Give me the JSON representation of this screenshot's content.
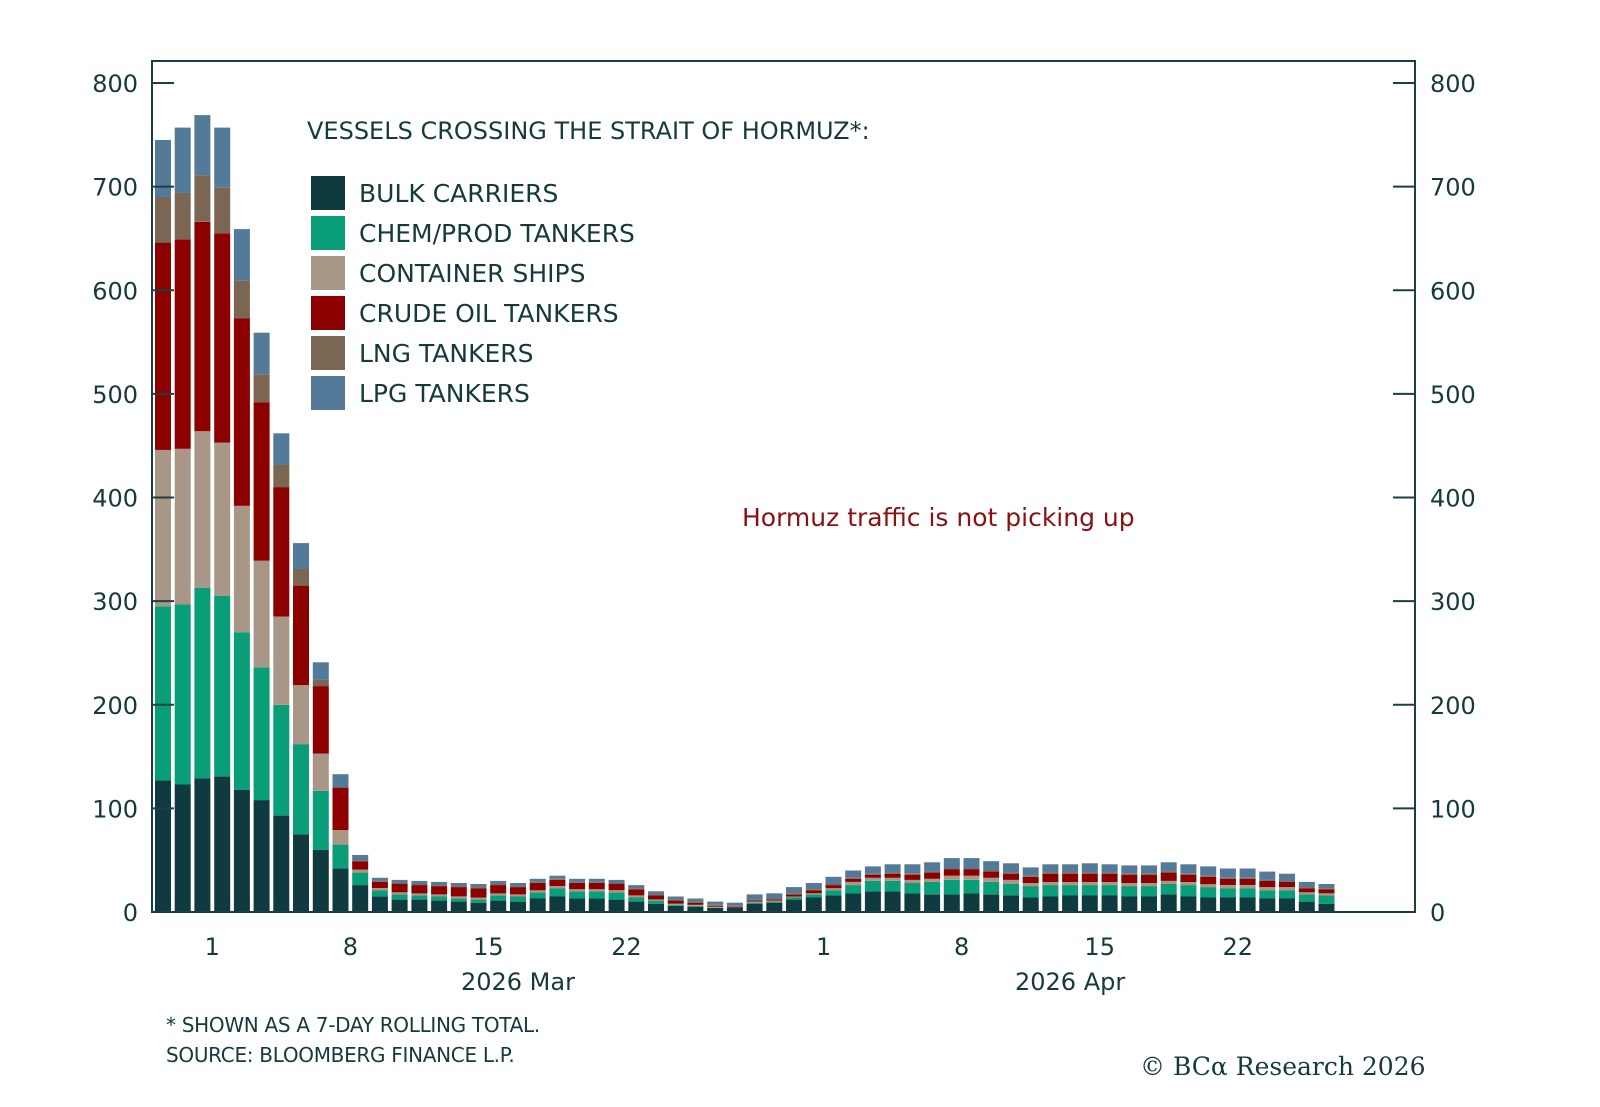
{
  "chart_data": {
    "type": "bar",
    "stacked": true,
    "title": "VESSELS CROSSING THE STRAIT OF HORMUZ*:",
    "annotation": "Hormuz traffic is not picking up",
    "xlabel": "",
    "ylabel": "",
    "ylim": [
      0,
      800
    ],
    "yticks": [
      0,
      100,
      200,
      300,
      400,
      500,
      600,
      700,
      800
    ],
    "y_axes": [
      "left",
      "right"
    ],
    "grid": false,
    "legend_position": "top-left",
    "x_start_date": "2026-02-26",
    "x_end_date": "2026-04-28",
    "x_ticks": [
      {
        "label": "1",
        "date": "2026-03-01"
      },
      {
        "label": "8",
        "date": "2026-03-08"
      },
      {
        "label": "15",
        "date": "2026-03-15"
      },
      {
        "label": "22",
        "date": "2026-03-22"
      },
      {
        "label": "1",
        "date": "2026-04-01"
      },
      {
        "label": "8",
        "date": "2026-04-08"
      },
      {
        "label": "15",
        "date": "2026-04-15"
      },
      {
        "label": "22",
        "date": "2026-04-22"
      }
    ],
    "x_month_labels": [
      {
        "label": "2026 Mar",
        "date": "2026-03-16"
      },
      {
        "label": "2026 Apr",
        "date": "2026-04-13"
      }
    ],
    "categories": [
      "Feb 26",
      "Feb 27",
      "Feb 28",
      "Mar 1",
      "Mar 2",
      "Mar 3",
      "Mar 4",
      "Mar 5",
      "Mar 6",
      "Mar 7",
      "Mar 8",
      "Mar 9",
      "Mar 10",
      "Mar 11",
      "Mar 12",
      "Mar 13",
      "Mar 14",
      "Mar 15",
      "Mar 16",
      "Mar 17",
      "Mar 18",
      "Mar 19",
      "Mar 20",
      "Mar 21",
      "Mar 22",
      "Mar 23",
      "Mar 24",
      "Mar 25",
      "Mar 26",
      "Mar 27",
      "Mar 28",
      "Mar 29",
      "Mar 30",
      "Mar 31",
      "Apr 1",
      "Apr 2",
      "Apr 3",
      "Apr 4",
      "Apr 5",
      "Apr 6",
      "Apr 7",
      "Apr 8",
      "Apr 9",
      "Apr 10",
      "Apr 11",
      "Apr 12",
      "Apr 13",
      "Apr 14",
      "Apr 15",
      "Apr 16",
      "Apr 17",
      "Apr 18",
      "Apr 19",
      "Apr 20",
      "Apr 21",
      "Apr 22",
      "Apr 23",
      "Apr 24",
      "Apr 25",
      "Apr 26"
    ],
    "series": [
      {
        "name": "BULK CARRIERS",
        "color": "#0f3a40",
        "values": [
          127,
          123,
          129,
          131,
          118,
          108,
          93,
          75,
          60,
          42,
          26,
          15,
          12,
          12,
          11,
          10,
          9,
          11,
          10,
          13,
          15,
          13,
          13,
          12,
          10,
          8,
          6,
          5,
          4,
          4,
          8,
          9,
          12,
          14,
          16,
          18,
          20,
          20,
          18,
          17,
          17,
          18,
          17,
          16,
          14,
          15,
          16,
          16,
          16,
          15,
          15,
          17,
          15,
          14,
          14,
          14,
          13,
          13,
          10,
          8
        ]
      },
      {
        "name": "CHEM/PROD TANKERS",
        "color": "#0a9e78",
        "values": [
          168,
          174,
          184,
          174,
          152,
          128,
          107,
          87,
          57,
          23,
          12,
          6,
          5,
          4,
          4,
          3,
          3,
          5,
          5,
          6,
          8,
          7,
          7,
          7,
          4,
          3,
          1,
          1,
          0,
          0,
          1,
          1,
          2,
          3,
          5,
          8,
          10,
          10,
          10,
          12,
          14,
          13,
          12,
          11,
          11,
          11,
          10,
          10,
          10,
          10,
          10,
          10,
          11,
          10,
          9,
          9,
          8,
          8,
          7,
          8
        ]
      },
      {
        "name": "CONTAINER SHIPS",
        "color": "#a89786",
        "values": [
          151,
          150,
          151,
          148,
          122,
          103,
          85,
          57,
          36,
          14,
          3,
          2,
          2,
          2,
          2,
          2,
          2,
          2,
          2,
          2,
          2,
          2,
          2,
          2,
          2,
          1,
          1,
          1,
          1,
          0,
          1,
          1,
          1,
          1,
          2,
          3,
          3,
          3,
          3,
          3,
          4,
          4,
          4,
          4,
          3,
          3,
          3,
          3,
          3,
          3,
          3,
          3,
          3,
          3,
          3,
          3,
          3,
          3,
          2,
          2
        ]
      },
      {
        "name": "CRUDE OIL TANKERS",
        "color": "#8c0000",
        "values": [
          200,
          202,
          202,
          202,
          181,
          153,
          125,
          96,
          65,
          41,
          8,
          6,
          8,
          8,
          8,
          9,
          9,
          8,
          7,
          7,
          6,
          6,
          6,
          6,
          6,
          4,
          3,
          2,
          1,
          1,
          1,
          1,
          2,
          3,
          3,
          3,
          3,
          4,
          5,
          6,
          6,
          6,
          6,
          6,
          6,
          8,
          8,
          8,
          8,
          8,
          8,
          8,
          7,
          7,
          6,
          6,
          6,
          5,
          4,
          4
        ]
      },
      {
        "name": "LNG TANKERS",
        "color": "#7b6654",
        "values": [
          44,
          45,
          45,
          44,
          36,
          27,
          22,
          16,
          6,
          0,
          1,
          1,
          1,
          1,
          1,
          1,
          1,
          1,
          1,
          1,
          1,
          1,
          1,
          1,
          1,
          1,
          1,
          1,
          1,
          1,
          1,
          1,
          1,
          1,
          1,
          1,
          1,
          1,
          1,
          1,
          1,
          1,
          1,
          1,
          1,
          1,
          1,
          1,
          1,
          1,
          1,
          1,
          1,
          1,
          1,
          1,
          1,
          1,
          1,
          1
        ]
      },
      {
        "name": "LPG TANKERS",
        "color": "#537a98",
        "values": [
          55,
          63,
          58,
          58,
          50,
          40,
          30,
          25,
          17,
          13,
          5,
          3,
          3,
          3,
          3,
          3,
          3,
          3,
          3,
          3,
          3,
          3,
          3,
          3,
          3,
          3,
          3,
          3,
          3,
          3,
          5,
          5,
          6,
          6,
          7,
          7,
          7,
          8,
          9,
          9,
          10,
          10,
          9,
          9,
          8,
          8,
          8,
          9,
          8,
          8,
          8,
          9,
          9,
          9,
          9,
          9,
          8,
          7,
          5,
          4
        ]
      }
    ]
  },
  "footer": {
    "note": "* SHOWN AS A 7-DAY ROLLING TOTAL.",
    "source": "SOURCE: BLOOMBERG FINANCE L.P.",
    "copyright": "© BCα Research 2026"
  }
}
